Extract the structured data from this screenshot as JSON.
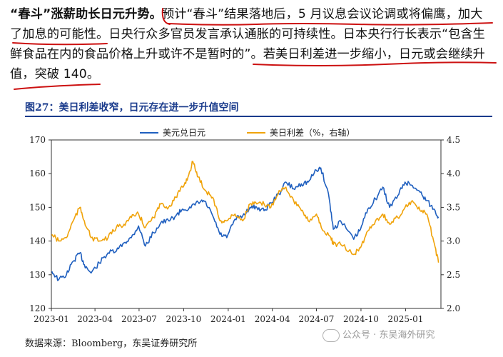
{
  "paragraph": {
    "line1": "“春斗”涨薪助长日元升势。预计“春斗”结果落地后，5 月议息会议论调或将偏鹰，加大",
    "line2": "了加息的可能性。日央行众多官员发言承认通胀的可持续性。日本央行行长表示“包含生",
    "line3": "鲜食品在内的食品价格上升或许不是暂时的”。若美日利差进一步缩小，日元或会继续升",
    "line4": "值，突破 140。",
    "bold_lead": "“春斗”涨薪助长日元升势。"
  },
  "figure": {
    "title": "图27：美日利差收窄，日元存在进一步升值空间",
    "source": "数据来源：Bloomberg，东吴证券研究所",
    "watermark": "公众号 · 东吴海外研究"
  },
  "colors": {
    "usdjpy": "#1f5fbf",
    "spread": "#f0a30a",
    "title": "#1a3b8c",
    "ink": "#cc1111"
  },
  "chart_data": {
    "type": "line",
    "x_ticks": [
      "2023-01",
      "2023-04",
      "2023-07",
      "2023-10",
      "2024-01",
      "2024-04",
      "2024-07",
      "2024-10",
      "2025-01"
    ],
    "yleft_ticks": [
      "120",
      "130",
      "140",
      "150",
      "160",
      "170"
    ],
    "yright_ticks": [
      "2.0",
      "2.5",
      "3.0",
      "3.5",
      "4.0",
      "4.5"
    ],
    "ylim_left": [
      120,
      170
    ],
    "ylim_right": [
      2.0,
      4.5
    ],
    "legend_position": "top-center",
    "series": [
      {
        "name": "美元兑日元",
        "axis": "left",
        "points": [
          [
            "2023-01-02",
            131.0
          ],
          [
            "2023-01-16",
            128.5
          ],
          [
            "2023-02-01",
            130.0
          ],
          [
            "2023-02-15",
            134.0
          ],
          [
            "2023-03-01",
            136.5
          ],
          [
            "2023-03-10",
            133.0
          ],
          [
            "2023-03-24",
            130.5
          ],
          [
            "2023-04-10",
            133.5
          ],
          [
            "2023-04-28",
            136.5
          ],
          [
            "2023-05-15",
            137.0
          ],
          [
            "2023-05-31",
            139.5
          ],
          [
            "2023-06-15",
            141.0
          ],
          [
            "2023-06-30",
            144.5
          ],
          [
            "2023-07-14",
            138.5
          ],
          [
            "2023-07-31",
            142.5
          ],
          [
            "2023-08-15",
            145.5
          ],
          [
            "2023-08-31",
            146.0
          ],
          [
            "2023-09-15",
            147.5
          ],
          [
            "2023-09-29",
            149.5
          ],
          [
            "2023-10-16",
            149.8
          ],
          [
            "2023-10-31",
            151.5
          ],
          [
            "2023-11-13",
            151.8
          ],
          [
            "2023-11-30",
            147.5
          ],
          [
            "2023-12-15",
            142.0
          ],
          [
            "2023-12-29",
            141.0
          ],
          [
            "2024-01-15",
            146.5
          ],
          [
            "2024-01-31",
            147.5
          ],
          [
            "2024-02-15",
            150.0
          ],
          [
            "2024-02-29",
            150.0
          ],
          [
            "2024-03-15",
            149.0
          ],
          [
            "2024-03-29",
            151.3
          ],
          [
            "2024-04-15",
            154.0
          ],
          [
            "2024-04-29",
            157.5
          ],
          [
            "2024-05-15",
            155.5
          ],
          [
            "2024-05-31",
            157.0
          ],
          [
            "2024-06-14",
            157.5
          ],
          [
            "2024-07-01",
            161.0
          ],
          [
            "2024-07-10",
            161.7
          ],
          [
            "2024-07-26",
            154.0
          ],
          [
            "2024-08-05",
            143.5
          ],
          [
            "2024-08-20",
            146.0
          ],
          [
            "2024-09-16",
            140.5
          ],
          [
            "2024-09-30",
            143.5
          ],
          [
            "2024-10-15",
            149.5
          ],
          [
            "2024-10-31",
            152.5
          ],
          [
            "2024-11-15",
            156.0
          ],
          [
            "2024-11-29",
            150.0
          ],
          [
            "2024-12-16",
            153.5
          ],
          [
            "2024-12-31",
            157.5
          ],
          [
            "2025-01-15",
            156.5
          ],
          [
            "2025-01-31",
            154.5
          ],
          [
            "2025-02-14",
            152.0
          ],
          [
            "2025-02-28",
            149.5
          ],
          [
            "2025-03-10",
            147.2
          ]
        ]
      },
      {
        "name": "美日利差（%，右轴）",
        "axis": "right",
        "points": [
          [
            "2023-01-02",
            3.1
          ],
          [
            "2023-01-16",
            3.0
          ],
          [
            "2023-02-01",
            3.05
          ],
          [
            "2023-02-15",
            3.3
          ],
          [
            "2023-03-01",
            3.5
          ],
          [
            "2023-03-10",
            3.3
          ],
          [
            "2023-03-24",
            3.05
          ],
          [
            "2023-04-10",
            3.0
          ],
          [
            "2023-04-28",
            3.05
          ],
          [
            "2023-05-15",
            3.2
          ],
          [
            "2023-05-31",
            3.25
          ],
          [
            "2023-06-15",
            3.35
          ],
          [
            "2023-06-30",
            3.4
          ],
          [
            "2023-07-14",
            3.2
          ],
          [
            "2023-07-31",
            3.35
          ],
          [
            "2023-08-15",
            3.55
          ],
          [
            "2023-08-31",
            3.5
          ],
          [
            "2023-09-15",
            3.65
          ],
          [
            "2023-09-29",
            3.8
          ],
          [
            "2023-10-10",
            3.95
          ],
          [
            "2023-10-20",
            4.18
          ],
          [
            "2023-10-31",
            3.95
          ],
          [
            "2023-11-15",
            3.75
          ],
          [
            "2023-11-30",
            3.65
          ],
          [
            "2023-12-15",
            3.3
          ],
          [
            "2023-12-29",
            3.3
          ],
          [
            "2024-01-15",
            3.4
          ],
          [
            "2024-01-31",
            3.3
          ],
          [
            "2024-02-15",
            3.55
          ],
          [
            "2024-02-29",
            3.55
          ],
          [
            "2024-03-15",
            3.55
          ],
          [
            "2024-03-29",
            3.5
          ],
          [
            "2024-04-15",
            3.75
          ],
          [
            "2024-04-29",
            3.8
          ],
          [
            "2024-05-15",
            3.6
          ],
          [
            "2024-05-31",
            3.45
          ],
          [
            "2024-06-14",
            3.3
          ],
          [
            "2024-07-01",
            3.4
          ],
          [
            "2024-07-15",
            3.15
          ],
          [
            "2024-07-31",
            3.05
          ],
          [
            "2024-08-05",
            2.95
          ],
          [
            "2024-08-20",
            2.95
          ],
          [
            "2024-09-16",
            2.8
          ],
          [
            "2024-09-30",
            2.9
          ],
          [
            "2024-10-15",
            3.15
          ],
          [
            "2024-10-31",
            3.3
          ],
          [
            "2024-11-15",
            3.4
          ],
          [
            "2024-11-29",
            3.25
          ],
          [
            "2024-12-16",
            3.35
          ],
          [
            "2024-12-31",
            3.5
          ],
          [
            "2025-01-15",
            3.6
          ],
          [
            "2025-01-31",
            3.45
          ],
          [
            "2025-02-14",
            3.4
          ],
          [
            "2025-02-28",
            3.0
          ],
          [
            "2025-03-10",
            2.68
          ]
        ]
      }
    ]
  }
}
